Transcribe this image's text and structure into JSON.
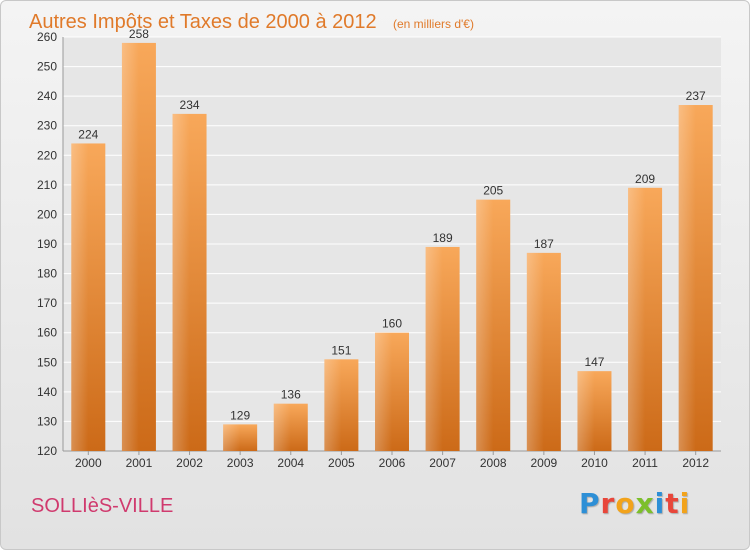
{
  "chart_data": {
    "type": "bar",
    "title": "Autres Impôts et Taxes de 2000 à 2012",
    "subtitle": "(en milliers d'€)",
    "xlabel": "",
    "ylabel": "",
    "categories": [
      "2000",
      "2001",
      "2002",
      "2003",
      "2004",
      "2005",
      "2006",
      "2007",
      "2008",
      "2009",
      "2010",
      "2011",
      "2012"
    ],
    "values": [
      224,
      258,
      234,
      129,
      136,
      151,
      160,
      189,
      205,
      187,
      147,
      209,
      237
    ],
    "ylim": [
      120,
      260
    ],
    "yticks": [
      120,
      130,
      140,
      150,
      160,
      170,
      180,
      190,
      200,
      210,
      220,
      230,
      240,
      250,
      260
    ],
    "grid": true,
    "legend": "none",
    "bar_color": "#f0923a",
    "bar_color_dark": "#c8620f"
  },
  "footer": {
    "commune": "SOLLIèS-VILLE",
    "logo_letters": [
      {
        "char": "P",
        "color": "#2d8fd6"
      },
      {
        "char": "r",
        "color": "#e8463a"
      },
      {
        "char": "o",
        "color": "#f2a31b"
      },
      {
        "char": "x",
        "color": "#7cbf2a"
      },
      {
        "char": "i",
        "color": "#2d8fd6"
      },
      {
        "char": "t",
        "color": "#e8463a"
      },
      {
        "char": "i",
        "color": "#f2a31b"
      }
    ]
  }
}
